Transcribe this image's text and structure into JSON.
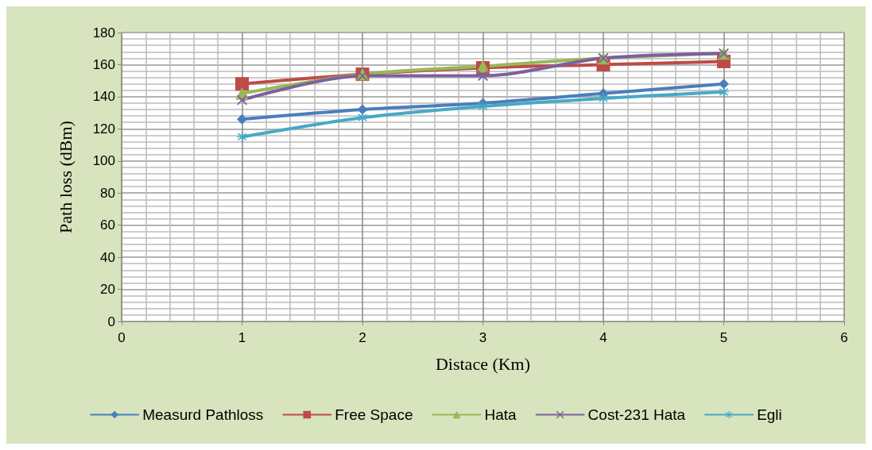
{
  "chart_data": {
    "type": "line",
    "xlabel": "Distace (Km)",
    "ylabel": "Path loss (dBm)",
    "x": [
      1,
      2,
      3,
      4,
      5
    ],
    "series": [
      {
        "name": "Measurd Pathloss",
        "color": "#4a7ebb",
        "marker": "diamond",
        "values": [
          126,
          132,
          136,
          142,
          148
        ]
      },
      {
        "name": "Free Space",
        "color": "#be4b48",
        "marker": "square",
        "values": [
          148,
          154,
          158,
          160,
          162
        ]
      },
      {
        "name": "Hata",
        "color": "#98b954",
        "marker": "triangle",
        "values": [
          142,
          154,
          159,
          164,
          167
        ]
      },
      {
        "name": "Cost-231 Hata",
        "color": "#7d60a0",
        "marker": "cross",
        "values": [
          138,
          153,
          153,
          164,
          167
        ]
      },
      {
        "name": "Egli",
        "color": "#46aac5",
        "marker": "star",
        "values": [
          115,
          127,
          134,
          139,
          143
        ]
      }
    ],
    "xlim": [
      0,
      6
    ],
    "xticks": [
      0,
      1,
      2,
      3,
      4,
      5,
      6
    ],
    "ylim": [
      0,
      180
    ],
    "yticks": [
      0,
      20,
      40,
      60,
      80,
      100,
      120,
      140,
      160,
      180
    ],
    "grid": true,
    "legend": "bottom",
    "line_style": "solid"
  }
}
